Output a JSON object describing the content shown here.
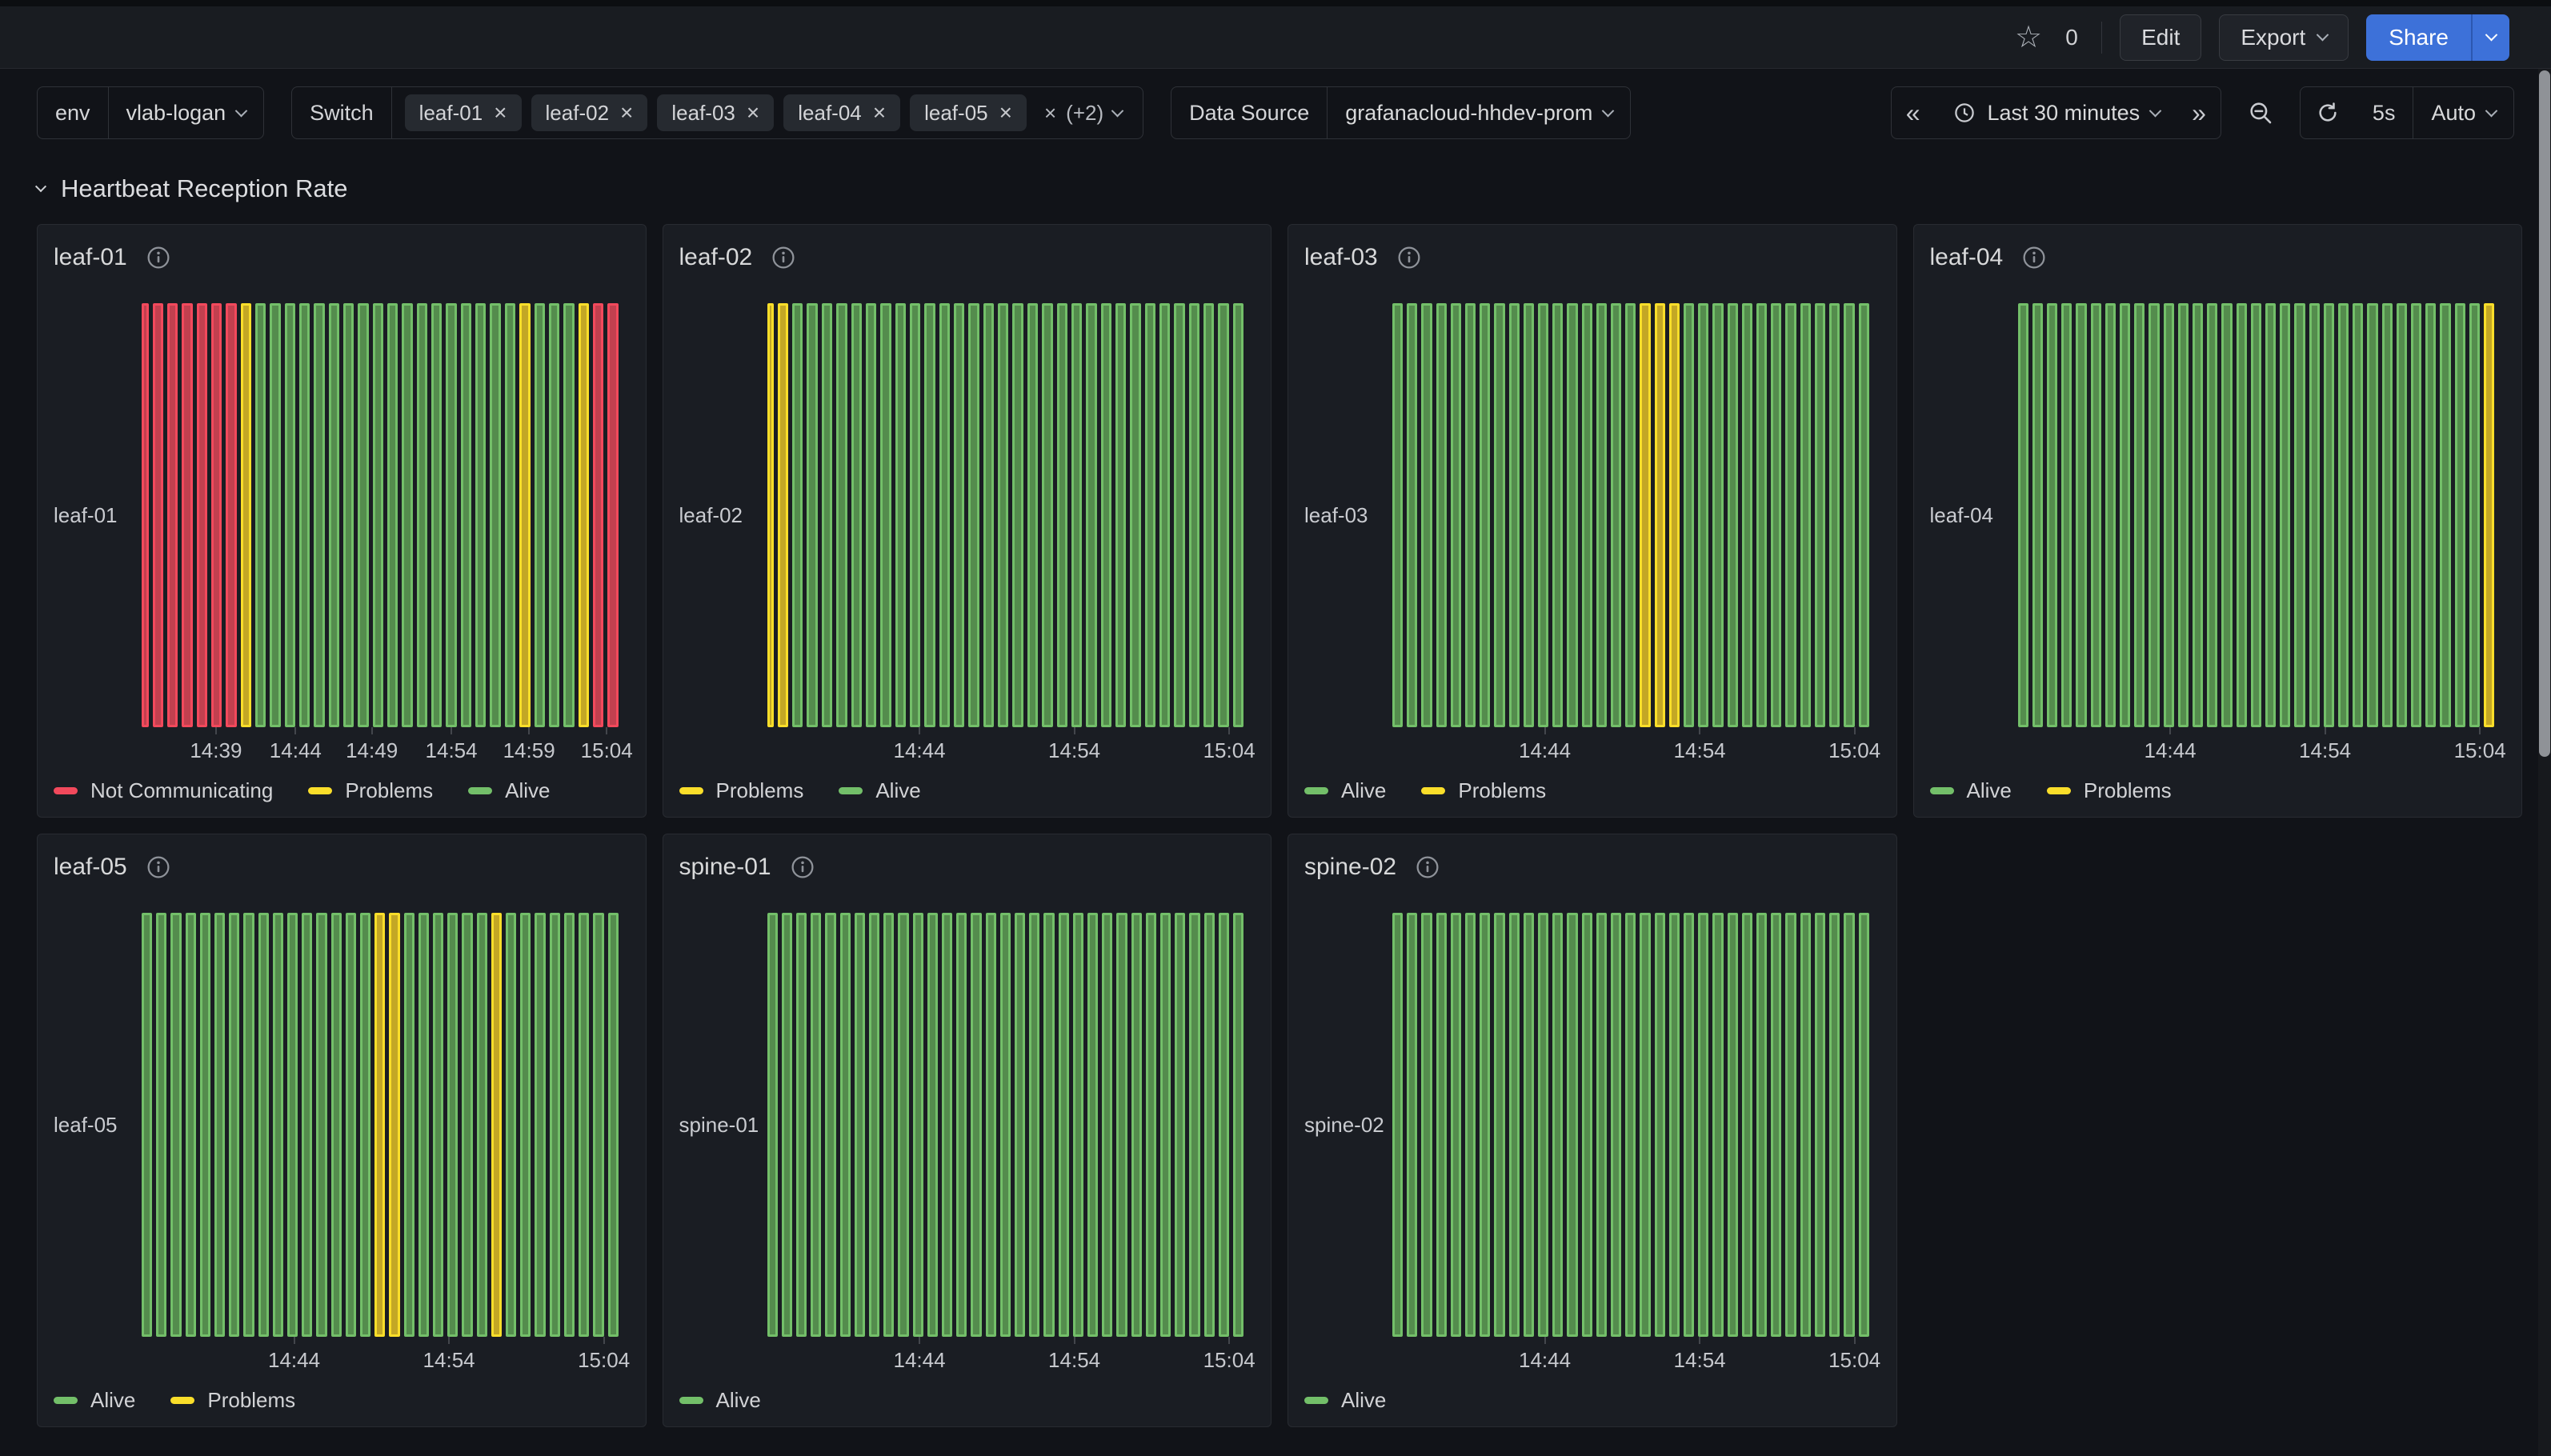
{
  "topnav": {
    "star_count": "0",
    "edit_label": "Edit",
    "export_label": "Export",
    "share_label": "Share"
  },
  "toolbar": {
    "env_label": "env",
    "env_value": "vlab-logan",
    "switch_label": "Switch",
    "switch_chips": [
      "leaf-01",
      "leaf-02",
      "leaf-03",
      "leaf-04",
      "leaf-05"
    ],
    "switch_overflow_label": "(+2)",
    "datasource_label": "Data Source",
    "datasource_value": "grafanacloud-hhdev-prom",
    "time_range_label": "Last 30 minutes",
    "refresh_interval": "5s",
    "refresh_mode": "Auto"
  },
  "section": {
    "title": "Heartbeat Reception Rate"
  },
  "colors": {
    "accent_blue": "#3d71d9",
    "panel_bg": "#1a1d23",
    "page_bg": "#111318"
  },
  "states": {
    "red": {
      "label": "Not Communicating",
      "line": "#F2495C",
      "fill": "#c2404f"
    },
    "yellow": {
      "label": "Problems",
      "line": "#FADE2A",
      "fill": "#c3a725"
    },
    "green": {
      "label": "Alive",
      "line": "#73BF69",
      "fill": "#548c4d"
    }
  },
  "chart_data": [
    {
      "type": "bar",
      "title": "leaf-01",
      "ylabel": "leaf-01",
      "x_ticks": [
        {
          "label": "14:39",
          "pos": 15.6
        },
        {
          "label": "14:44",
          "pos": 32.3
        },
        {
          "label": "14:49",
          "pos": 48.3
        },
        {
          "label": "14:54",
          "pos": 65.0
        },
        {
          "label": "14:59",
          "pos": 81.3
        },
        {
          "label": "15:04",
          "pos": 97.6
        }
      ],
      "legend": [
        "red",
        "yellow",
        "green"
      ],
      "segments": [
        [
          0.35,
          "red"
        ],
        [
          6,
          "red"
        ],
        [
          1,
          "yellow"
        ],
        [
          18,
          "green"
        ],
        [
          1,
          "yellow"
        ],
        [
          3,
          "green"
        ],
        [
          1,
          "yellow"
        ],
        [
          2,
          "red"
        ]
      ]
    },
    {
      "type": "bar",
      "title": "leaf-02",
      "ylabel": "leaf-02",
      "x_ticks": [
        {
          "label": "14:44",
          "pos": 32.0
        },
        {
          "label": "14:54",
          "pos": 64.5
        },
        {
          "label": "15:04",
          "pos": 97.0
        }
      ],
      "legend": [
        "yellow",
        "green"
      ],
      "segments": [
        [
          0.3,
          "yellow"
        ],
        [
          1,
          "yellow"
        ],
        [
          31,
          "green"
        ]
      ]
    },
    {
      "type": "bar",
      "title": "leaf-03",
      "ylabel": "leaf-03",
      "x_ticks": [
        {
          "label": "14:44",
          "pos": 32.0
        },
        {
          "label": "14:54",
          "pos": 64.5
        },
        {
          "label": "15:04",
          "pos": 97.0
        }
      ],
      "legend": [
        "green",
        "yellow"
      ],
      "segments": [
        [
          17,
          "green"
        ],
        [
          3,
          "yellow"
        ],
        [
          13,
          "green"
        ]
      ]
    },
    {
      "type": "bar",
      "title": "leaf-04",
      "ylabel": "leaf-04",
      "x_ticks": [
        {
          "label": "14:44",
          "pos": 32.0
        },
        {
          "label": "14:54",
          "pos": 64.5
        },
        {
          "label": "15:04",
          "pos": 97.0
        }
      ],
      "legend": [
        "green",
        "yellow"
      ],
      "segments": [
        [
          32,
          "green"
        ],
        [
          1,
          "yellow"
        ]
      ]
    },
    {
      "type": "bar",
      "title": "leaf-05",
      "ylabel": "leaf-05",
      "x_ticks": [
        {
          "label": "14:44",
          "pos": 32.0
        },
        {
          "label": "14:54",
          "pos": 64.5
        },
        {
          "label": "15:04",
          "pos": 97.0
        }
      ],
      "legend": [
        "green",
        "yellow"
      ],
      "segments": [
        [
          16,
          "green"
        ],
        [
          2,
          "yellow"
        ],
        [
          6,
          "green"
        ],
        [
          1,
          "yellow"
        ],
        [
          8,
          "green"
        ]
      ]
    },
    {
      "type": "bar",
      "title": "spine-01",
      "ylabel": "spine-01",
      "x_ticks": [
        {
          "label": "14:44",
          "pos": 32.0
        },
        {
          "label": "14:54",
          "pos": 64.5
        },
        {
          "label": "15:04",
          "pos": 97.0
        }
      ],
      "legend": [
        "green"
      ],
      "segments": [
        [
          33,
          "green"
        ]
      ]
    },
    {
      "type": "bar",
      "title": "spine-02",
      "ylabel": "spine-02",
      "x_ticks": [
        {
          "label": "14:44",
          "pos": 32.0
        },
        {
          "label": "14:54",
          "pos": 64.5
        },
        {
          "label": "15:04",
          "pos": 97.0
        }
      ],
      "legend": [
        "green"
      ],
      "segments": [
        [
          33,
          "green"
        ]
      ]
    }
  ]
}
